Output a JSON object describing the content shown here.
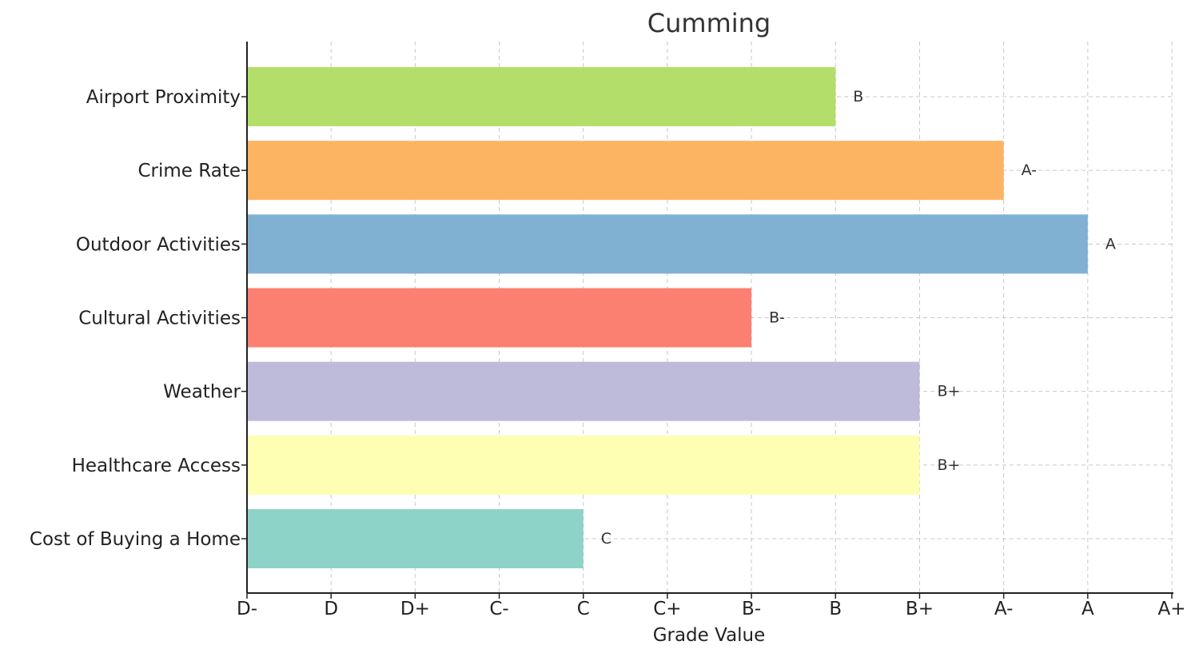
{
  "chart_data": {
    "type": "bar",
    "orientation": "horizontal",
    "title": "Cumming",
    "xlabel": "Grade Value",
    "ylabel": "",
    "grade_scale": [
      "D-",
      "D",
      "D+",
      "C-",
      "C",
      "C+",
      "B-",
      "B",
      "B+",
      "A-",
      "A",
      "A+"
    ],
    "xlim": [
      0,
      11
    ],
    "grid": true,
    "categories": [
      "Airport Proximity",
      "Crime Rate",
      "Outdoor Activities",
      "Cultural Activities",
      "Weather",
      "Healthcare Access",
      "Cost of Buying a Home"
    ],
    "grades": [
      "B",
      "A-",
      "A",
      "B-",
      "B+",
      "B+",
      "C"
    ],
    "values": [
      7,
      9,
      10,
      6,
      8,
      8,
      4
    ],
    "colors": [
      "#b3de69",
      "#fdb462",
      "#80b1d3",
      "#fb8072",
      "#bebada",
      "#ffffb3",
      "#8dd3c7"
    ]
  }
}
